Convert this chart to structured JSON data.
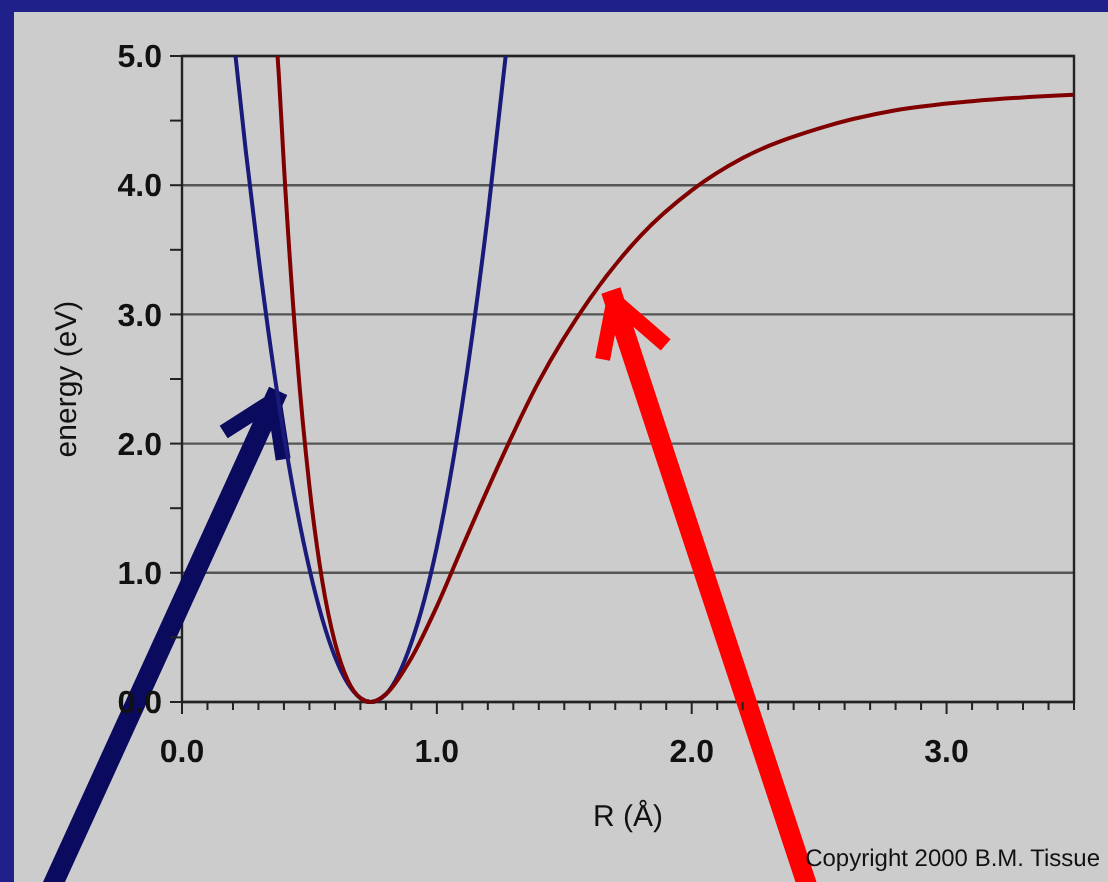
{
  "chart_data": {
    "type": "line",
    "xlabel": "R (Å)",
    "ylabel": "energy (eV)",
    "xlim": [
      0,
      3.5
    ],
    "ylim": [
      0,
      5
    ],
    "xticks": [
      {
        "value": 0,
        "label": "0.0"
      },
      {
        "value": 0.1,
        "label": null
      },
      {
        "value": 0.2,
        "label": null
      },
      {
        "value": 0.3,
        "label": null
      },
      {
        "value": 0.4,
        "label": null
      },
      {
        "value": 0.5,
        "label": null
      },
      {
        "value": 0.6,
        "label": null
      },
      {
        "value": 0.7,
        "label": null
      },
      {
        "value": 0.8,
        "label": null
      },
      {
        "value": 0.9,
        "label": null
      },
      {
        "value": 1,
        "label": "1.0"
      },
      {
        "value": 1.1,
        "label": null
      },
      {
        "value": 1.2,
        "label": null
      },
      {
        "value": 1.3,
        "label": null
      },
      {
        "value": 1.4,
        "label": null
      },
      {
        "value": 1.5,
        "label": null
      },
      {
        "value": 1.6,
        "label": null
      },
      {
        "value": 1.7,
        "label": null
      },
      {
        "value": 1.8,
        "label": null
      },
      {
        "value": 1.9,
        "label": null
      },
      {
        "value": 2,
        "label": "2.0"
      },
      {
        "value": 2.1,
        "label": null
      },
      {
        "value": 2.2,
        "label": null
      },
      {
        "value": 2.3,
        "label": null
      },
      {
        "value": 2.4,
        "label": null
      },
      {
        "value": 2.5,
        "label": null
      },
      {
        "value": 2.6,
        "label": null
      },
      {
        "value": 2.7,
        "label": null
      },
      {
        "value": 2.8,
        "label": null
      },
      {
        "value": 2.9,
        "label": null
      },
      {
        "value": 3,
        "label": "3.0"
      },
      {
        "value": 3.1,
        "label": null
      },
      {
        "value": 3.2,
        "label": null
      },
      {
        "value": 3.3,
        "label": null
      },
      {
        "value": 3.4,
        "label": null
      },
      {
        "value": 3.5,
        "label": null
      }
    ],
    "yticks": [
      {
        "value": 0,
        "label": "0.0"
      },
      {
        "value": 0.5,
        "label": null
      },
      {
        "value": 1,
        "label": "1.0"
      },
      {
        "value": 1.5,
        "label": null
      },
      {
        "value": 2,
        "label": "2.0"
      },
      {
        "value": 2.5,
        "label": null
      },
      {
        "value": 3,
        "label": "3.0"
      },
      {
        "value": 3.5,
        "label": null
      },
      {
        "value": 4,
        "label": "4.0"
      },
      {
        "value": 4.5,
        "label": null
      },
      {
        "value": 5,
        "label": "5.0"
      }
    ],
    "grid": "y",
    "marker": "none",
    "line_style": "solid",
    "series": [
      {
        "color": "#1a1a7a",
        "x": [
          0.21,
          0.25,
          0.3,
          0.4,
          0.5,
          0.6,
          0.7,
          0.74,
          0.8,
          0.9,
          1.0,
          1.1,
          1.2,
          1.27
        ],
        "values": [
          5.0,
          4.27,
          3.45,
          2.06,
          1.03,
          0.35,
          0.03,
          0,
          0.06,
          0.46,
          1.2,
          2.31,
          3.77,
          5.0
        ]
      },
      {
        "color": "#800000",
        "x": [
          0.375,
          0.38,
          0.4,
          0.45,
          0.5,
          0.55,
          0.6,
          0.65,
          0.7,
          0.74,
          0.8,
          0.9,
          1.0,
          1.1,
          1.2,
          1.4,
          1.6,
          1.8,
          2.0,
          2.2,
          2.5,
          2.8,
          3.1,
          3.5
        ],
        "values": [
          5.0,
          4.85,
          4.15,
          2.71,
          1.67,
          0.94,
          0.46,
          0.17,
          0.03,
          0,
          0.06,
          0.34,
          0.74,
          1.2,
          1.65,
          2.48,
          3.12,
          3.61,
          3.96,
          4.21,
          4.44,
          4.58,
          4.65,
          4.7
        ]
      }
    ],
    "annotations": [
      "Copyright 2000 B.M. Tissue"
    ]
  }
}
